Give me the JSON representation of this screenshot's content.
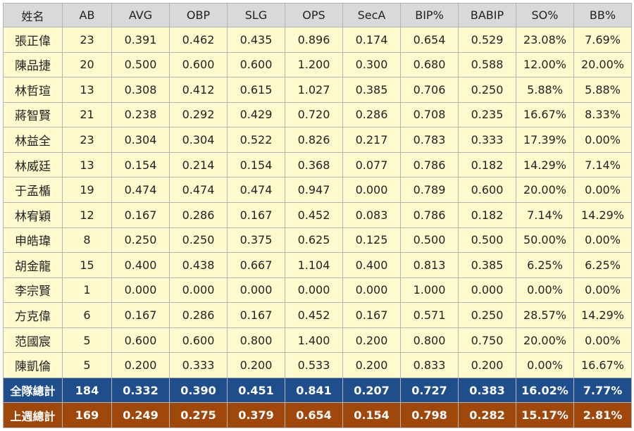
{
  "headers": [
    "姓名",
    "AB",
    "AVG",
    "OBP",
    "SLG",
    "OPS",
    "SecA",
    "BIP%",
    "BABIP",
    "SO%",
    "BB%"
  ],
  "players": [
    [
      "張正偉",
      "23",
      "0.391",
      "0.462",
      "0.435",
      "0.896",
      "0.174",
      "0.654",
      "0.529",
      "23.08%",
      "7.69%"
    ],
    [
      "陳品捷",
      "20",
      "0.500",
      "0.600",
      "0.600",
      "1.200",
      "0.300",
      "0.680",
      "0.588",
      "12.00%",
      "20.00%"
    ],
    [
      "林哲瑄",
      "13",
      "0.308",
      "0.412",
      "0.615",
      "1.027",
      "0.385",
      "0.706",
      "0.250",
      "5.88%",
      "5.88%"
    ],
    [
      "蔣智賢",
      "21",
      "0.238",
      "0.292",
      "0.429",
      "0.720",
      "0.286",
      "0.708",
      "0.235",
      "16.67%",
      "8.33%"
    ],
    [
      "林益全",
      "23",
      "0.304",
      "0.304",
      "0.522",
      "0.826",
      "0.217",
      "0.783",
      "0.333",
      "17.39%",
      "0.00%"
    ],
    [
      "林威廷",
      "13",
      "0.154",
      "0.214",
      "0.154",
      "0.368",
      "0.077",
      "0.786",
      "0.182",
      "14.29%",
      "7.14%"
    ],
    [
      "于孟楯",
      "19",
      "0.474",
      "0.474",
      "0.474",
      "0.947",
      "0.000",
      "0.789",
      "0.600",
      "20.00%",
      "0.00%"
    ],
    [
      "林宥穎",
      "12",
      "0.167",
      "0.286",
      "0.167",
      "0.452",
      "0.083",
      "0.786",
      "0.182",
      "7.14%",
      "14.29%"
    ],
    [
      "申皓瑋",
      "8",
      "0.250",
      "0.250",
      "0.375",
      "0.625",
      "0.125",
      "0.500",
      "0.500",
      "50.00%",
      "0.00%"
    ],
    [
      "胡金龍",
      "15",
      "0.400",
      "0.438",
      "0.667",
      "1.104",
      "0.400",
      "0.813",
      "0.385",
      "6.25%",
      "6.25%"
    ],
    [
      "李宗賢",
      "1",
      "0.000",
      "0.000",
      "0.000",
      "0.000",
      "0.000",
      "1.000",
      "0.000",
      "0.00%",
      "0.00%"
    ],
    [
      "方克偉",
      "6",
      "0.167",
      "0.286",
      "0.167",
      "0.452",
      "0.167",
      "0.571",
      "0.250",
      "28.57%",
      "14.29%"
    ],
    [
      "范國宸",
      "5",
      "0.600",
      "0.600",
      "0.800",
      "1.400",
      "0.200",
      "0.800",
      "0.750",
      "20.00%",
      "0.00%"
    ],
    [
      "陳凱倫",
      "5",
      "0.200",
      "0.333",
      "0.200",
      "0.533",
      "0.200",
      "0.833",
      "0.200",
      "0.00%",
      "16.67%"
    ]
  ],
  "team_total": [
    "全隊總計",
    "184",
    "0.332",
    "0.390",
    "0.451",
    "0.841",
    "0.207",
    "0.727",
    "0.383",
    "16.02%",
    "7.77%"
  ],
  "last_week_total": [
    "上週總計",
    "169",
    "0.249",
    "0.275",
    "0.379",
    "0.654",
    "0.154",
    "0.798",
    "0.282",
    "15.17%",
    "2.81%"
  ],
  "colors": {
    "header_bg": "#d9d9d9",
    "row_bg": "#fffacd",
    "team_total_bg": "#1f4e8c",
    "last_week_bg": "#a0480c",
    "border": "#b4b4b4"
  }
}
